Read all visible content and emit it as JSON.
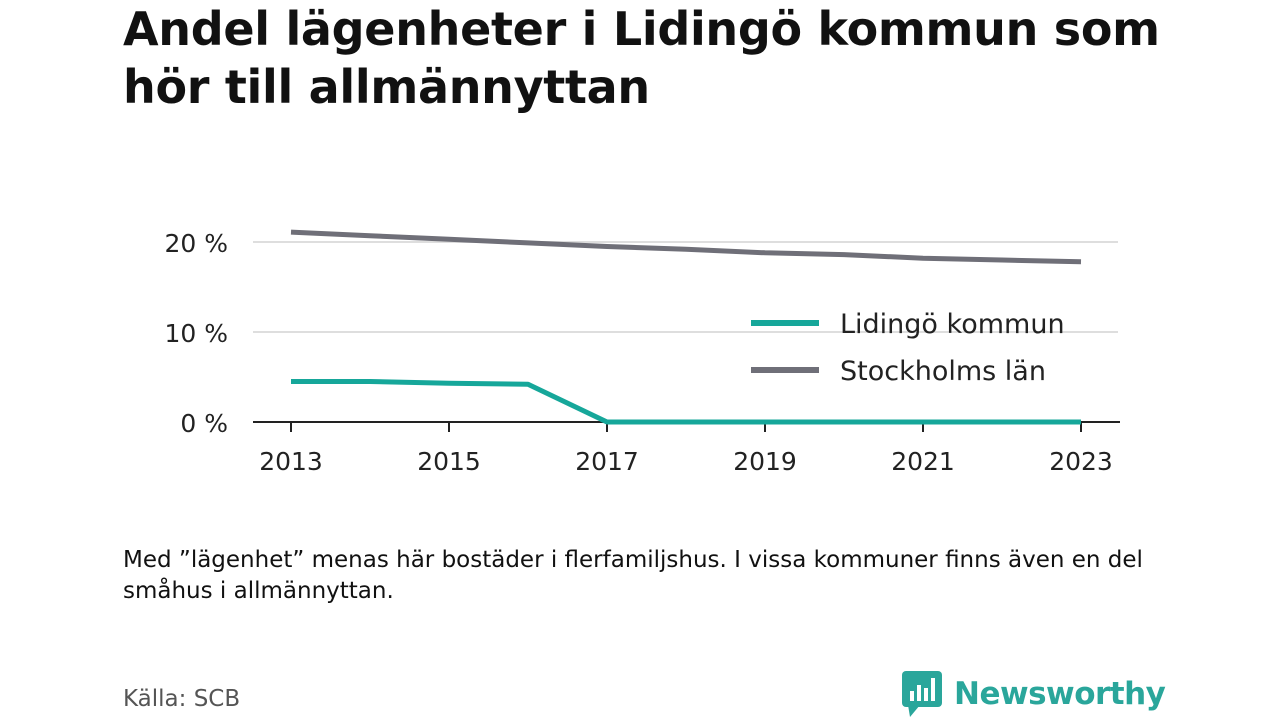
{
  "title": "Andel lägenheter i Lidingö kommun som hör till allmännyttan",
  "note": "Med ”lägenhet” menas här bostäder i flerfamiljshus. I vissa kommuner finns även en del småhus i allmännyttan.",
  "source": "Källa: SCB",
  "brand": {
    "name": "Newsworthy",
    "icon": "bar-chart-speech-bubble-icon",
    "color": "#2aa69b"
  },
  "chart_data": {
    "type": "line",
    "x": [
      2013,
      2014,
      2015,
      2016,
      2017,
      2018,
      2019,
      2020,
      2021,
      2022,
      2023
    ],
    "x_ticks": [
      "2013",
      "2015",
      "2017",
      "2019",
      "2021",
      "2023"
    ],
    "y_ticks": [
      "0 %",
      "10 %",
      "20 %"
    ],
    "y_tick_values": [
      0,
      10,
      20
    ],
    "ylim": [
      0,
      21
    ],
    "xlim": [
      2013,
      2023
    ],
    "grid": true,
    "legend_position": "center-right",
    "series": [
      {
        "name": "Lidingö kommun",
        "color": "#16a79a",
        "values": [
          4.5,
          4.5,
          4.3,
          4.2,
          0.0,
          0.0,
          0.0,
          0.0,
          0.0,
          0.0,
          0.0
        ]
      },
      {
        "name": "Stockholms län",
        "color": "#6f6f78",
        "values": [
          21.1,
          20.7,
          20.3,
          19.9,
          19.5,
          19.2,
          18.8,
          18.6,
          18.2,
          18.0,
          17.8
        ]
      }
    ]
  }
}
